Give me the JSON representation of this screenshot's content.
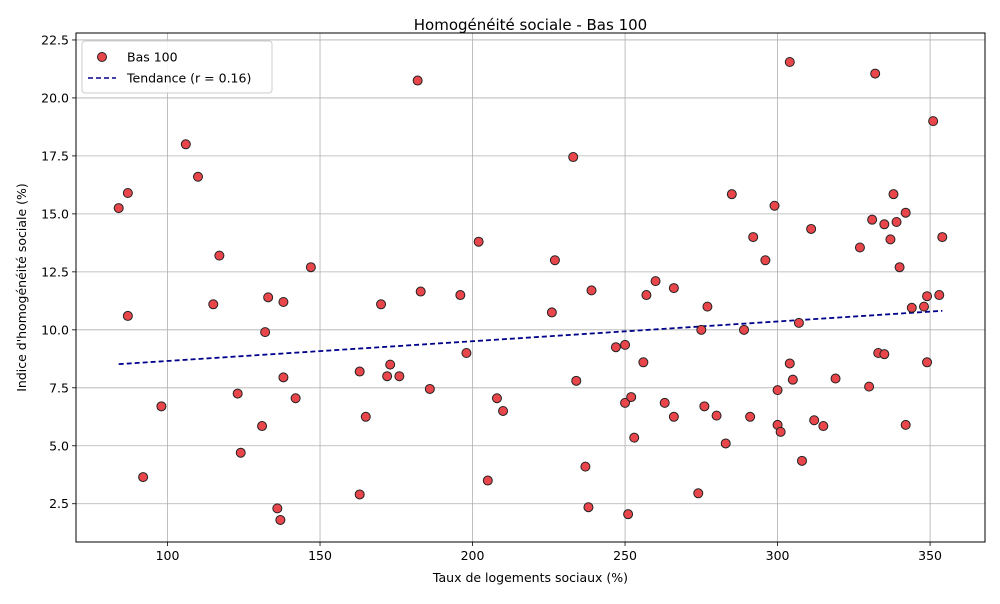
{
  "chart_data": {
    "type": "scatter",
    "title": "Homogénéité sociale - Bas 100",
    "xlabel": "Taux de logements sociaux (%)",
    "ylabel": "Indice d'homogénéité sociale (%)",
    "xlim": [
      70,
      368
    ],
    "ylim": [
      0.85,
      22.8
    ],
    "xticks": [
      "100",
      "150",
      "200",
      "250",
      "300",
      "350"
    ],
    "yticks": [
      "2.5",
      "5.0",
      "7.5",
      "10.0",
      "12.5",
      "15.0",
      "17.5",
      "20.0",
      "22.5"
    ],
    "grid": true,
    "legend_position": "top-left",
    "legend": {
      "scatter_label": "Bas 100",
      "trend_label": "Tendance (r = 0.16)"
    },
    "colors": {
      "point_fill": "#e8464b",
      "point_edge": "#222222",
      "trend_line": "#00008b",
      "grid": "#b0b0b0"
    },
    "trend": {
      "x": [
        84,
        354
      ],
      "y": [
        8.52,
        10.82
      ]
    },
    "series": [
      {
        "name": "Bas 100",
        "points": [
          [
            84,
            15.25
          ],
          [
            87,
            15.9
          ],
          [
            87,
            10.6
          ],
          [
            92,
            3.65
          ],
          [
            98,
            6.7
          ],
          [
            106,
            18.0
          ],
          [
            110,
            16.6
          ],
          [
            115,
            11.1
          ],
          [
            117,
            13.2
          ],
          [
            123,
            7.25
          ],
          [
            124,
            4.7
          ],
          [
            131,
            5.85
          ],
          [
            132,
            9.9
          ],
          [
            133,
            11.4
          ],
          [
            136,
            2.3
          ],
          [
            137,
            1.8
          ],
          [
            138,
            7.95
          ],
          [
            138,
            11.2
          ],
          [
            142,
            7.05
          ],
          [
            147,
            12.7
          ],
          [
            163,
            2.9
          ],
          [
            163,
            8.2
          ],
          [
            165,
            6.25
          ],
          [
            170,
            11.1
          ],
          [
            172,
            8.0
          ],
          [
            173,
            8.5
          ],
          [
            176,
            8.0
          ],
          [
            182,
            20.75
          ],
          [
            183,
            11.65
          ],
          [
            186,
            7.45
          ],
          [
            196,
            11.5
          ],
          [
            198,
            9.0
          ],
          [
            202,
            13.8
          ],
          [
            205,
            3.5
          ],
          [
            208,
            7.05
          ],
          [
            210,
            6.5
          ],
          [
            226,
            10.75
          ],
          [
            227,
            13.0
          ],
          [
            233,
            17.45
          ],
          [
            234,
            7.8
          ],
          [
            237,
            4.1
          ],
          [
            238,
            2.35
          ],
          [
            239,
            11.7
          ],
          [
            247,
            9.25
          ],
          [
            250,
            9.35
          ],
          [
            250,
            6.85
          ],
          [
            251,
            2.05
          ],
          [
            252,
            7.1
          ],
          [
            253,
            5.35
          ],
          [
            256,
            8.6
          ],
          [
            257,
            11.5
          ],
          [
            260,
            12.1
          ],
          [
            263,
            6.85
          ],
          [
            266,
            6.25
          ],
          [
            266,
            11.8
          ],
          [
            274,
            2.95
          ],
          [
            275,
            10.0
          ],
          [
            276,
            6.7
          ],
          [
            277,
            11.0
          ],
          [
            280,
            6.3
          ],
          [
            283,
            5.1
          ],
          [
            285,
            15.85
          ],
          [
            289,
            10.0
          ],
          [
            291,
            6.25
          ],
          [
            292,
            14.0
          ],
          [
            296,
            13.0
          ],
          [
            299,
            15.35
          ],
          [
            300,
            7.4
          ],
          [
            300,
            5.9
          ],
          [
            301,
            5.6
          ],
          [
            304,
            8.55
          ],
          [
            304,
            21.55
          ],
          [
            305,
            7.85
          ],
          [
            307,
            10.3
          ],
          [
            308,
            4.35
          ],
          [
            311,
            14.35
          ],
          [
            312,
            6.1
          ],
          [
            315,
            5.85
          ],
          [
            319,
            7.9
          ],
          [
            327,
            13.55
          ],
          [
            330,
            7.55
          ],
          [
            331,
            14.75
          ],
          [
            332,
            21.05
          ],
          [
            333,
            9.0
          ],
          [
            335,
            8.95
          ],
          [
            335,
            14.55
          ],
          [
            337,
            13.9
          ],
          [
            338,
            15.85
          ],
          [
            339,
            14.65
          ],
          [
            340,
            12.7
          ],
          [
            342,
            15.05
          ],
          [
            342,
            5.9
          ],
          [
            344,
            10.95
          ],
          [
            348,
            11.0
          ],
          [
            349,
            8.6
          ],
          [
            349,
            11.45
          ],
          [
            351,
            19.0
          ],
          [
            353,
            11.5
          ],
          [
            354,
            14.0
          ]
        ]
      }
    ]
  }
}
